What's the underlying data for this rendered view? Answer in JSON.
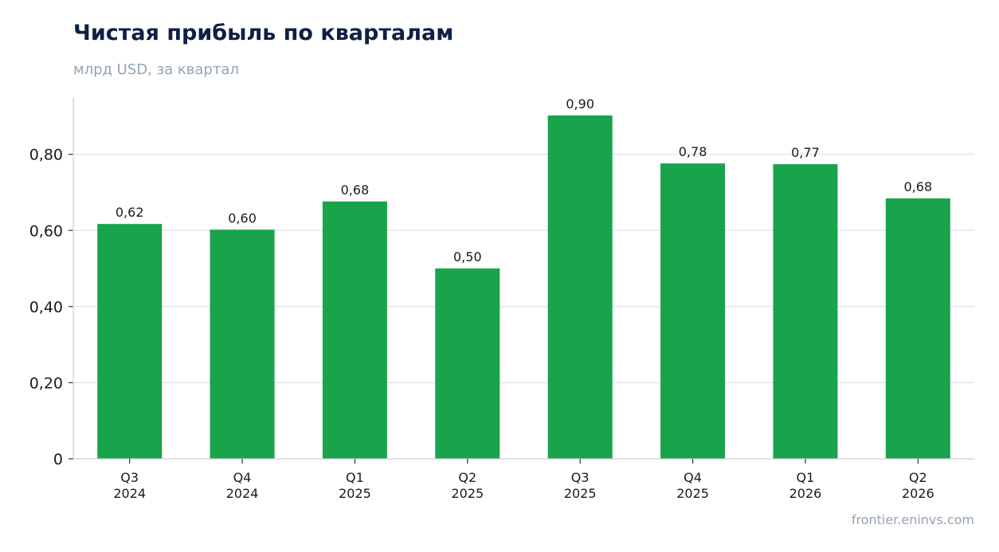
{
  "title": "Чистая прибыль по кварталам",
  "subtitle": "млрд USD, за квартал",
  "source": "frontier.eninvs.com",
  "colors": {
    "bar": "#19a34a",
    "grid": "#e1e6ee",
    "axis": "#c9ced6"
  },
  "chart_data": {
    "type": "bar",
    "title": "Чистая прибыль по кварталам",
    "subtitle": "млрд USD, за квартал",
    "categories": [
      [
        "Q3",
        "2024"
      ],
      [
        "Q4",
        "2024"
      ],
      [
        "Q1",
        "2025"
      ],
      [
        "Q2",
        "2025"
      ],
      [
        "Q3",
        "2025"
      ],
      [
        "Q4",
        "2025"
      ],
      [
        "Q1",
        "2026"
      ],
      [
        "Q2",
        "2026"
      ]
    ],
    "values": [
      0.617,
      0.602,
      0.676,
      0.5,
      0.902,
      0.776,
      0.774,
      0.684
    ],
    "value_labels": [
      "0,62",
      "0,60",
      "0,68",
      "0,50",
      "0,90",
      "0,78",
      "0,77",
      "0,68"
    ],
    "yticks": [
      0,
      0.2,
      0.4,
      0.6,
      0.8
    ],
    "ytick_labels": [
      "0",
      "0,20",
      "0,40",
      "0,60",
      "0,80"
    ],
    "ylim": [
      0,
      0.95
    ],
    "grid": true,
    "xlabel": "",
    "ylabel": ""
  }
}
